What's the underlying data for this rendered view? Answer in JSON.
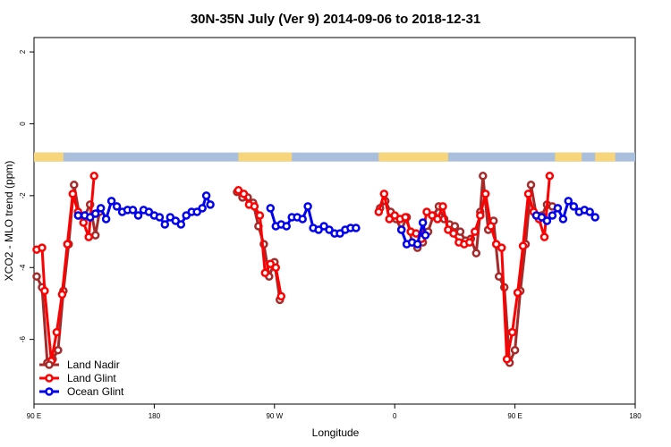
{
  "chart_data": {
    "type": "line",
    "title": "30N-35N July (Ver 9)   2014-09-06 to 2018-12-31",
    "xlabel": "Longitude",
    "ylabel": "XCO2 - MLO trend (ppm)",
    "x_axis": {
      "description": "longitude unwrapped from 90 E eastward through 180 and 90 W to 0 and back to 90 E and on to 180",
      "range": [
        90,
        540
      ],
      "ticks": [
        {
          "x": 90,
          "label": "90 E"
        },
        {
          "x": 180,
          "label": "180"
        },
        {
          "x": 270,
          "label": "90 W"
        },
        {
          "x": 360,
          "label": "0"
        },
        {
          "x": 450,
          "label": "90 E"
        },
        {
          "x": 540,
          "label": "180"
        }
      ]
    },
    "y_axis": {
      "range": [
        -7.8,
        2.4
      ],
      "ticks": [
        {
          "y": 2,
          "label": "2"
        },
        {
          "y": 0,
          "label": "0"
        },
        {
          "y": -2,
          "label": "-2"
        },
        {
          "y": -4,
          "label": "-4"
        },
        {
          "y": -6,
          "label": "-6"
        }
      ]
    },
    "grid": false,
    "legend_position": "bottom-left",
    "surface_band": {
      "y_range": [
        -1.05,
        -0.8
      ],
      "land_color": "#f7d57a",
      "ocean_color": "#a9bfdc",
      "land_segments": [
        [
          90,
          112
        ],
        [
          243,
          283
        ],
        [
          348,
          400
        ],
        [
          480,
          500
        ],
        [
          510,
          525
        ]
      ]
    },
    "series": [
      {
        "name": "Land Nadir",
        "color": "#a52a2a",
        "points": [
          [
            92,
            -4.25
          ],
          [
            96,
            -4.55
          ],
          [
            100,
            -6.65
          ],
          [
            104,
            -6.55
          ],
          [
            108,
            -6.3
          ],
          [
            112,
            -4.65
          ],
          [
            116,
            -3.35
          ],
          [
            120,
            -1.7
          ],
          [
            124,
            -2.55
          ],
          [
            128,
            -2.55
          ],
          [
            132,
            -2.25
          ],
          [
            136,
            -3.1
          ],
          [
            139,
            -2.45
          ],
          [
            242,
            -1.9
          ],
          [
            246,
            -2.05
          ],
          [
            250,
            -2.05
          ],
          [
            254,
            -2.2
          ],
          [
            258,
            -2.85
          ],
          [
            262,
            -3.35
          ],
          [
            266,
            -4.25
          ],
          [
            270,
            -3.85
          ],
          [
            274,
            -4.9
          ],
          [
            349,
            -2.35
          ],
          [
            353,
            -2.15
          ],
          [
            357,
            -2.45
          ],
          [
            361,
            -2.65
          ],
          [
            365,
            -2.95
          ],
          [
            369,
            -2.6
          ],
          [
            373,
            -3.3
          ],
          [
            377,
            -3.45
          ],
          [
            381,
            -3.3
          ],
          [
            385,
            -3.0
          ],
          [
            389,
            -2.55
          ],
          [
            393,
            -2.3
          ],
          [
            397,
            -2.65
          ],
          [
            401,
            -2.8
          ],
          [
            405,
            -2.85
          ],
          [
            409,
            -3.0
          ],
          [
            413,
            -3.25
          ],
          [
            417,
            -3.2
          ],
          [
            421,
            -3.6
          ],
          [
            424,
            -2.45
          ],
          [
            426,
            -1.45
          ],
          [
            430,
            -2.95
          ],
          [
            434,
            -2.7
          ],
          [
            438,
            -4.25
          ],
          [
            442,
            -4.55
          ],
          [
            446,
            -6.65
          ],
          [
            450,
            -6.3
          ],
          [
            454,
            -4.65
          ],
          [
            458,
            -3.35
          ],
          [
            462,
            -1.7
          ],
          [
            466,
            -2.55
          ],
          [
            470,
            -2.55
          ],
          [
            474,
            -2.25
          ],
          [
            478,
            -2.3
          ]
        ]
      },
      {
        "name": "Land Glint",
        "color": "#ff0000",
        "points": [
          [
            92,
            -3.5
          ],
          [
            96,
            -3.45
          ],
          [
            98,
            -4.65
          ],
          [
            103,
            -6.6
          ],
          [
            107,
            -5.8
          ],
          [
            111,
            -4.75
          ],
          [
            115,
            -3.35
          ],
          [
            119,
            -1.95
          ],
          [
            123,
            -2.45
          ],
          [
            127,
            -2.75
          ],
          [
            131,
            -3.15
          ],
          [
            135,
            -1.45
          ],
          [
            243,
            -1.85
          ],
          [
            247,
            -1.95
          ],
          [
            251,
            -2.25
          ],
          [
            255,
            -2.3
          ],
          [
            259,
            -2.55
          ],
          [
            263,
            -4.15
          ],
          [
            267,
            -3.9
          ],
          [
            271,
            -4.0
          ],
          [
            275,
            -4.8
          ],
          [
            348,
            -2.45
          ],
          [
            352,
            -1.95
          ],
          [
            356,
            -2.65
          ],
          [
            360,
            -2.55
          ],
          [
            364,
            -2.65
          ],
          [
            368,
            -2.6
          ],
          [
            372,
            -3.0
          ],
          [
            376,
            -3.05
          ],
          [
            380,
            -3.2
          ],
          [
            384,
            -2.45
          ],
          [
            388,
            -2.55
          ],
          [
            392,
            -2.65
          ],
          [
            396,
            -2.3
          ],
          [
            400,
            -2.95
          ],
          [
            404,
            -3.05
          ],
          [
            408,
            -3.3
          ],
          [
            412,
            -3.35
          ],
          [
            416,
            -3.3
          ],
          [
            420,
            -3.0
          ],
          [
            424,
            -2.55
          ],
          [
            428,
            -1.95
          ],
          [
            432,
            -2.85
          ],
          [
            436,
            -3.35
          ],
          [
            440,
            -3.45
          ],
          [
            444,
            -6.55
          ],
          [
            448,
            -5.8
          ],
          [
            452,
            -4.7
          ],
          [
            456,
            -3.4
          ],
          [
            460,
            -1.95
          ],
          [
            464,
            -2.45
          ],
          [
            468,
            -2.65
          ],
          [
            472,
            -3.15
          ],
          [
            476,
            -1.45
          ]
        ]
      },
      {
        "name": "Ocean Glint",
        "color": "#0000ee",
        "points": [
          [
            123,
            -2.55
          ],
          [
            128,
            -2.55
          ],
          [
            132,
            -2.6
          ],
          [
            136,
            -2.5
          ],
          [
            140,
            -2.35
          ],
          [
            144,
            -2.65
          ],
          [
            148,
            -2.15
          ],
          [
            152,
            -2.3
          ],
          [
            156,
            -2.45
          ],
          [
            160,
            -2.4
          ],
          [
            164,
            -2.4
          ],
          [
            168,
            -2.55
          ],
          [
            172,
            -2.4
          ],
          [
            176,
            -2.45
          ],
          [
            180,
            -2.55
          ],
          [
            184,
            -2.6
          ],
          [
            188,
            -2.8
          ],
          [
            192,
            -2.6
          ],
          [
            196,
            -2.7
          ],
          [
            200,
            -2.8
          ],
          [
            204,
            -2.55
          ],
          [
            208,
            -2.45
          ],
          [
            212,
            -2.45
          ],
          [
            216,
            -2.35
          ],
          [
            219,
            -2.0
          ],
          [
            222,
            -2.25
          ],
          [
            267,
            -2.35
          ],
          [
            271,
            -2.85
          ],
          [
            275,
            -2.8
          ],
          [
            279,
            -2.85
          ],
          [
            283,
            -2.6
          ],
          [
            287,
            -2.6
          ],
          [
            291,
            -2.65
          ],
          [
            295,
            -2.3
          ],
          [
            299,
            -2.9
          ],
          [
            303,
            -2.95
          ],
          [
            307,
            -2.85
          ],
          [
            311,
            -2.95
          ],
          [
            315,
            -3.05
          ],
          [
            319,
            -3.05
          ],
          [
            323,
            -2.95
          ],
          [
            327,
            -2.9
          ],
          [
            331,
            -2.9
          ],
          [
            365,
            -2.95
          ],
          [
            369,
            -3.35
          ],
          [
            373,
            -3.3
          ],
          [
            377,
            -3.35
          ],
          [
            381,
            -2.75
          ],
          [
            383,
            -3.1
          ],
          [
            466,
            -2.55
          ],
          [
            470,
            -2.6
          ],
          [
            474,
            -2.7
          ],
          [
            478,
            -2.55
          ],
          [
            482,
            -2.35
          ],
          [
            486,
            -2.65
          ],
          [
            490,
            -2.15
          ],
          [
            494,
            -2.3
          ],
          [
            498,
            -2.45
          ],
          [
            502,
            -2.4
          ],
          [
            506,
            -2.45
          ],
          [
            510,
            -2.6
          ]
        ]
      }
    ]
  }
}
